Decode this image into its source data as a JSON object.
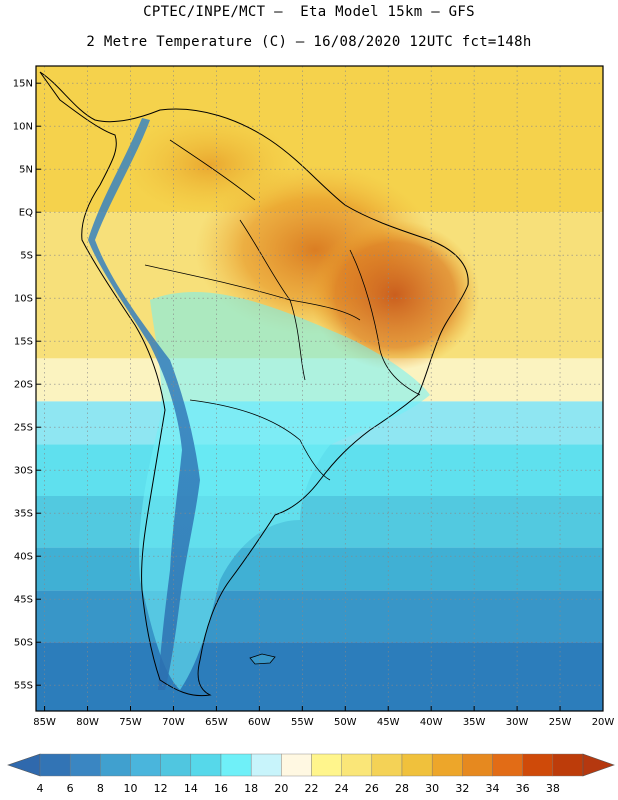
{
  "header": {
    "line1": "CPTEC/INPE/MCT –  Eta Model 15km – GFS",
    "line2": "2 Metre Temperature (C) – 16/08/2020 12UTC fct=148h"
  },
  "map": {
    "lon_range": [
      -86,
      -20
    ],
    "lat_range": [
      -58,
      17
    ],
    "lat_ticks": [
      {
        "lat": 15,
        "label": "15N"
      },
      {
        "lat": 10,
        "label": "10N"
      },
      {
        "lat": 5,
        "label": "5N"
      },
      {
        "lat": 0,
        "label": "EQ"
      },
      {
        "lat": -5,
        "label": "5S"
      },
      {
        "lat": -10,
        "label": "10S"
      },
      {
        "lat": -15,
        "label": "15S"
      },
      {
        "lat": -20,
        "label": "20S"
      },
      {
        "lat": -25,
        "label": "25S"
      },
      {
        "lat": -30,
        "label": "30S"
      },
      {
        "lat": -35,
        "label": "35S"
      },
      {
        "lat": -40,
        "label": "40S"
      },
      {
        "lat": -45,
        "label": "45S"
      },
      {
        "lat": -50,
        "label": "50S"
      },
      {
        "lat": -55,
        "label": "55S"
      }
    ],
    "lon_ticks": [
      {
        "lon": -85,
        "label": "85W"
      },
      {
        "lon": -80,
        "label": "80W"
      },
      {
        "lon": -75,
        "label": "75W"
      },
      {
        "lon": -70,
        "label": "70W"
      },
      {
        "lon": -65,
        "label": "65W"
      },
      {
        "lon": -60,
        "label": "60W"
      },
      {
        "lon": -55,
        "label": "55W"
      },
      {
        "lon": -50,
        "label": "50W"
      },
      {
        "lon": -45,
        "label": "45W"
      },
      {
        "lon": -40,
        "label": "40W"
      },
      {
        "lon": -35,
        "label": "35W"
      },
      {
        "lon": -30,
        "label": "30W"
      },
      {
        "lon": -25,
        "label": "25W"
      },
      {
        "lon": -20,
        "label": "20W"
      }
    ],
    "temperature_bands": [
      {
        "from_lat": 17,
        "to_lat": 0,
        "color": "#f5d24c"
      },
      {
        "from_lat": 0,
        "to_lat": -17,
        "color": "#f7e07a"
      },
      {
        "from_lat": -17,
        "to_lat": -22,
        "color": "#fbf3c0"
      },
      {
        "from_lat": -22,
        "to_lat": -27,
        "color": "#8fe6f2"
      },
      {
        "from_lat": -27,
        "to_lat": -33,
        "color": "#5fe0ee"
      },
      {
        "from_lat": -33,
        "to_lat": -39,
        "color": "#52c9e0"
      },
      {
        "from_lat": -39,
        "to_lat": -44,
        "color": "#40b0d4"
      },
      {
        "from_lat": -44,
        "to_lat": -50,
        "color": "#3896c8"
      },
      {
        "from_lat": -50,
        "to_lat": -58,
        "color": "#2c7dbb"
      }
    ]
  },
  "colorbar": {
    "labels": [
      "4",
      "6",
      "8",
      "10",
      "12",
      "14",
      "16",
      "18",
      "20",
      "22",
      "24",
      "26",
      "28",
      "30",
      "32",
      "34",
      "36",
      "38"
    ],
    "colors": [
      "#3274b5",
      "#3a86c2",
      "#40a0cf",
      "#4ab5dc",
      "#50c6e0",
      "#56d8ea",
      "#6ff0f8",
      "#c8f4fb",
      "#fff8e2",
      "#fff58c",
      "#fae678",
      "#f4d256",
      "#f0c13c",
      "#eda62a",
      "#e6891f",
      "#e26c16",
      "#cf4a09",
      "#bd3c0a"
    ],
    "under_color": "#2f69ad",
    "over_color": "#b5380f"
  }
}
